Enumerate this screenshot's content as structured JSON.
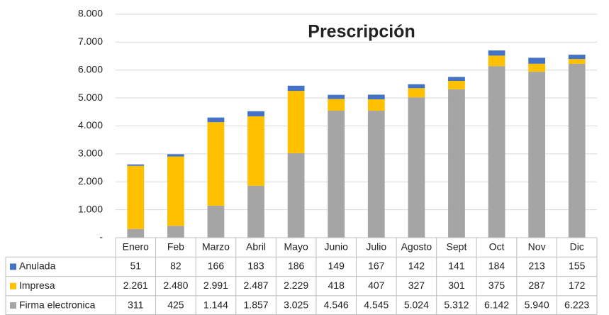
{
  "chart_data": {
    "type": "stacked_bar",
    "title": "Prescripción",
    "categories": [
      "Enero",
      "Feb",
      "Marzo",
      "Abril",
      "Mayo",
      "Junio",
      "Julio",
      "Agosto",
      "Sept",
      "Oct",
      "Nov",
      "Dic"
    ],
    "series": [
      {
        "name": "Anulada",
        "color": "#4472c4",
        "values": [
          51,
          82,
          166,
          183,
          186,
          149,
          167,
          142,
          141,
          184,
          213,
          155
        ],
        "value_labels": [
          "51",
          "82",
          "166",
          "183",
          "186",
          "149",
          "167",
          "142",
          "141",
          "184",
          "213",
          "155"
        ]
      },
      {
        "name": "Impresa",
        "color": "#ffc000",
        "values": [
          2261,
          2480,
          2991,
          2487,
          2229,
          418,
          407,
          327,
          301,
          375,
          287,
          172
        ],
        "value_labels": [
          "2.261",
          "2.480",
          "2.991",
          "2.487",
          "2.229",
          "418",
          "407",
          "327",
          "301",
          "375",
          "287",
          "172"
        ]
      },
      {
        "name": "Firma electronica",
        "color": "#a5a5a5",
        "values": [
          311,
          425,
          1144,
          1857,
          3025,
          4546,
          4545,
          5024,
          5312,
          6142,
          5940,
          6223
        ],
        "value_labels": [
          "311",
          "425",
          "1.144",
          "1.857",
          "3.025",
          "4.546",
          "4.545",
          "5.024",
          "5.312",
          "6.142",
          "5.940",
          "6.223"
        ]
      }
    ],
    "ylim": [
      0,
      8000
    ],
    "yticks": [
      {
        "value": 0,
        "label": "-"
      },
      {
        "value": 1000,
        "label": "1.000"
      },
      {
        "value": 2000,
        "label": "2.000"
      },
      {
        "value": 3000,
        "label": "3.000"
      },
      {
        "value": 4000,
        "label": "4.000"
      },
      {
        "value": 5000,
        "label": "5.000"
      },
      {
        "value": 6000,
        "label": "6.000"
      },
      {
        "value": 7000,
        "label": "7.000"
      },
      {
        "value": 8000,
        "label": "8.000"
      }
    ],
    "grid": true
  }
}
